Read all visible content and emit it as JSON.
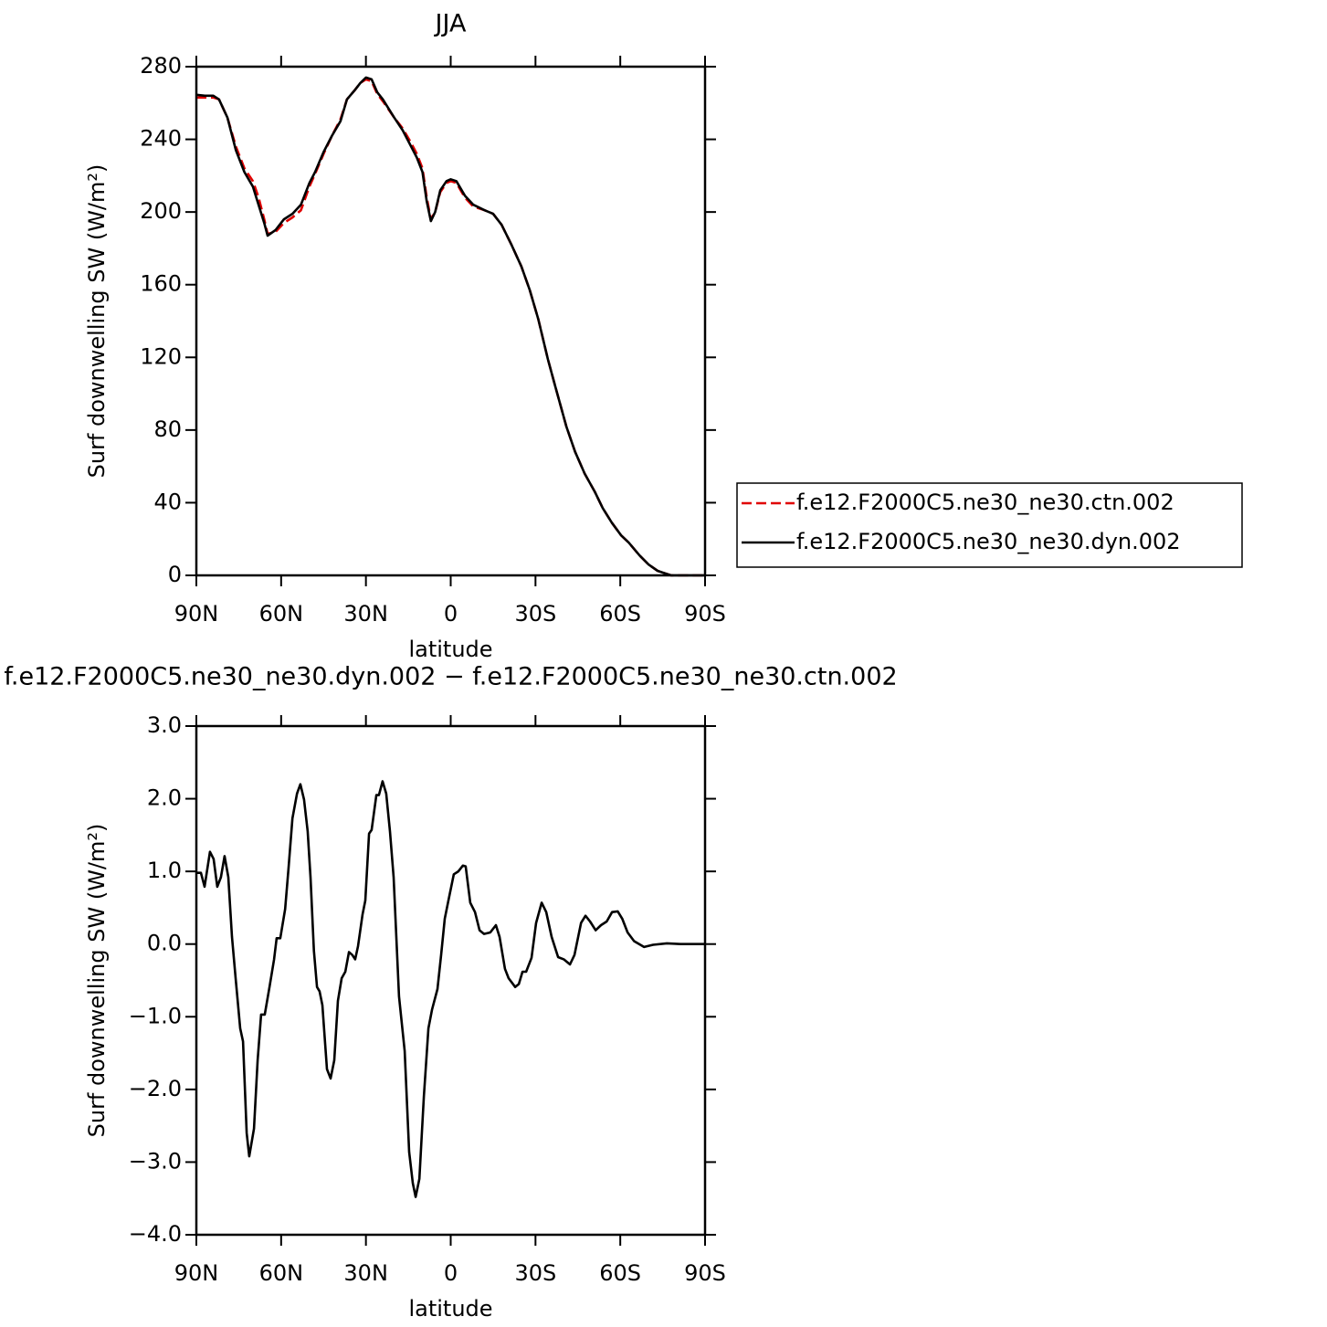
{
  "chart_data": [
    {
      "type": "line",
      "title": "JJA",
      "xlabel": "latitude",
      "ylabel": "Surf downwelling SW (W/m²)",
      "xlim": [
        90,
        -90
      ],
      "xticks": [
        {
          "value": 90,
          "label": "90N"
        },
        {
          "value": 60,
          "label": "60N"
        },
        {
          "value": 30,
          "label": "30N"
        },
        0,
        {
          "value": -30,
          "label": "30S"
        },
        {
          "value": -60,
          "label": "60S"
        },
        {
          "value": -90,
          "label": "90S"
        }
      ],
      "ylim": [
        0,
        280
      ],
      "yticks": [
        0,
        40,
        80,
        120,
        160,
        200,
        240,
        280
      ],
      "legend": "right",
      "x": [
        90,
        87,
        84,
        82,
        79,
        76,
        73,
        70,
        68,
        66,
        64.8,
        62,
        59,
        56,
        53,
        50,
        48,
        45,
        42,
        39,
        36.7,
        34,
        32,
        30,
        28,
        26,
        24,
        20,
        17,
        14,
        12,
        10,
        8.5,
        7,
        5.5,
        3.7,
        1.5,
        0,
        -2,
        -5,
        -8,
        -12,
        -15,
        -18,
        -21.5,
        -25,
        -28,
        -31,
        -34.4,
        -37,
        -40.9,
        -44,
        -47.4,
        -51,
        -53.8,
        -57,
        -60.3,
        -63,
        -66.8,
        -70,
        -73.2,
        -76,
        -78,
        -82,
        -86,
        -90
      ],
      "series": [
        {
          "name": "f.e12.F2000C5.ne30_ne30.ctn.002",
          "color": "#e00000",
          "dash": true,
          "values": [
            263,
            263,
            263,
            262,
            252,
            236,
            224,
            217,
            208,
            196,
            188,
            189,
            194,
            197,
            201,
            214,
            221,
            232,
            242,
            251,
            262,
            267,
            271,
            273,
            272,
            265,
            261,
            252,
            246,
            238,
            232,
            224,
            208,
            196,
            200,
            211,
            216,
            217,
            216,
            208,
            203,
            201,
            199,
            193,
            182,
            170,
            157,
            141,
            119,
            104,
            82,
            68,
            56,
            46,
            37,
            29,
            22,
            18,
            11,
            6,
            2.5,
            1,
            0,
            0,
            0,
            0
          ]
        },
        {
          "name": "f.e12.F2000C5.ne30_ne30.dyn.002",
          "color": "#000000",
          "dash": false,
          "values": [
            264.5,
            264,
            264,
            262,
            252,
            234,
            222,
            214,
            204,
            194,
            187,
            190,
            196,
            199,
            204,
            216,
            222,
            233,
            242,
            250,
            262,
            267,
            271,
            274,
            273,
            266,
            262,
            252,
            245,
            236,
            230,
            222,
            206,
            195,
            200,
            212,
            217,
            218,
            217,
            209,
            204,
            201,
            199,
            193,
            182,
            170,
            157,
            141,
            119,
            104,
            82,
            68,
            56,
            46,
            37,
            29,
            22,
            18,
            11,
            6,
            2.5,
            1,
            0,
            0,
            0,
            0
          ]
        }
      ]
    },
    {
      "type": "line",
      "title": "f.e12.F2000C5.ne30_ne30.dyn.002 − f.e12.F2000C5.ne30_ne30.ctn.002",
      "xlabel": "latitude",
      "ylabel": "Surf downwelling SW (W/m²)",
      "xlim": [
        90,
        -90
      ],
      "xticks": [
        {
          "value": 90,
          "label": "90N"
        },
        {
          "value": 60,
          "label": "60N"
        },
        {
          "value": 30,
          "label": "30N"
        },
        0,
        {
          "value": -30,
          "label": "30S"
        },
        {
          "value": -60,
          "label": "60S"
        },
        {
          "value": -90,
          "label": "90S"
        }
      ],
      "ylim": [
        -4,
        3
      ],
      "yticks": [
        {
          "value": -4,
          "label": "−4.0"
        },
        {
          "value": -3,
          "label": "−3.0"
        },
        {
          "value": -2,
          "label": "−2.0"
        },
        {
          "value": -1,
          "label": "−1.0"
        },
        {
          "value": 0,
          "label": "0.0"
        },
        {
          "value": 1,
          "label": "1.0"
        },
        {
          "value": 2,
          "label": "2.0"
        },
        {
          "value": 3,
          "label": "3.0"
        }
      ],
      "x": [
        90,
        88.4,
        87.1,
        85.2,
        83.9,
        82.6,
        81.3,
        80,
        78.7,
        77.4,
        76.1,
        74.5,
        73.5,
        72.2,
        71.3,
        69.6,
        68.3,
        67.1,
        65.8,
        64.1,
        62.5,
        61.6,
        60.3,
        58.6,
        57.4,
        56,
        54.4,
        53.2,
        51.9,
        50.6,
        49.6,
        48.4,
        47.3,
        46.4,
        45.4,
        43.8,
        42.5,
        41.2,
        39.9,
        38.6,
        37.3,
        36,
        34.8,
        33.8,
        32.8,
        31.2,
        30.2,
        28.9,
        28,
        26.3,
        25.4,
        24.1,
        22.8,
        21.5,
        20.2,
        18.3,
        16.3,
        14.7,
        13.4,
        12.4,
        11.1,
        9.5,
        7.9,
        6.6,
        4.7,
        3.4,
        2.1,
        0.8,
        -1.1,
        -2.7,
        -4.3,
        -5.3,
        -6.9,
        -8.6,
        -10.2,
        -11.8,
        -14,
        -16,
        -17.3,
        -19.2,
        -20.5,
        -22.8,
        -24.1,
        -25.4,
        -26.7,
        -28.6,
        -30.2,
        -32.2,
        -33.8,
        -35.7,
        -38,
        -40,
        -42.2,
        -43.8,
        -46.1,
        -47.7,
        -49.3,
        -51.3,
        -53.2,
        -55.2,
        -57.1,
        -59.1,
        -60.7,
        -62.6,
        -64.9,
        -68.4,
        -71.6,
        -76.5,
        -81.3,
        -90
      ],
      "color": "#000000",
      "values": [
        0.98,
        0.98,
        0.79,
        1.27,
        1.17,
        0.79,
        0.92,
        1.21,
        0.92,
        0.1,
        -0.47,
        -1.16,
        -1.34,
        -2.6,
        -2.92,
        -2.54,
        -1.6,
        -0.97,
        -0.97,
        -0.59,
        -0.21,
        0.08,
        0.08,
        0.48,
        1.04,
        1.73,
        2.07,
        2.2,
        1.99,
        1.55,
        0.92,
        -0.09,
        -0.59,
        -0.65,
        -0.84,
        -1.72,
        -1.85,
        -1.6,
        -0.78,
        -0.47,
        -0.38,
        -0.11,
        -0.15,
        -0.21,
        -0.03,
        0.41,
        0.6,
        1.52,
        1.57,
        2.05,
        2.05,
        2.24,
        2.07,
        1.55,
        0.92,
        -0.72,
        -1.47,
        -2.86,
        -3.29,
        -3.48,
        -3.23,
        -2.1,
        -1.16,
        -0.9,
        -0.62,
        -0.15,
        0.35,
        0.6,
        0.96,
        1.0,
        1.08,
        1.07,
        0.57,
        0.44,
        0.19,
        0.14,
        0.16,
        0.26,
        0.1,
        -0.34,
        -0.47,
        -0.59,
        -0.55,
        -0.38,
        -0.38,
        -0.19,
        0.29,
        0.57,
        0.44,
        0.1,
        -0.18,
        -0.21,
        -0.28,
        -0.15,
        0.29,
        0.39,
        0.31,
        0.19,
        0.26,
        0.31,
        0.44,
        0.45,
        0.35,
        0.16,
        0.04,
        -0.04,
        -0.01,
        0.01,
        0,
        0
      ]
    }
  ]
}
